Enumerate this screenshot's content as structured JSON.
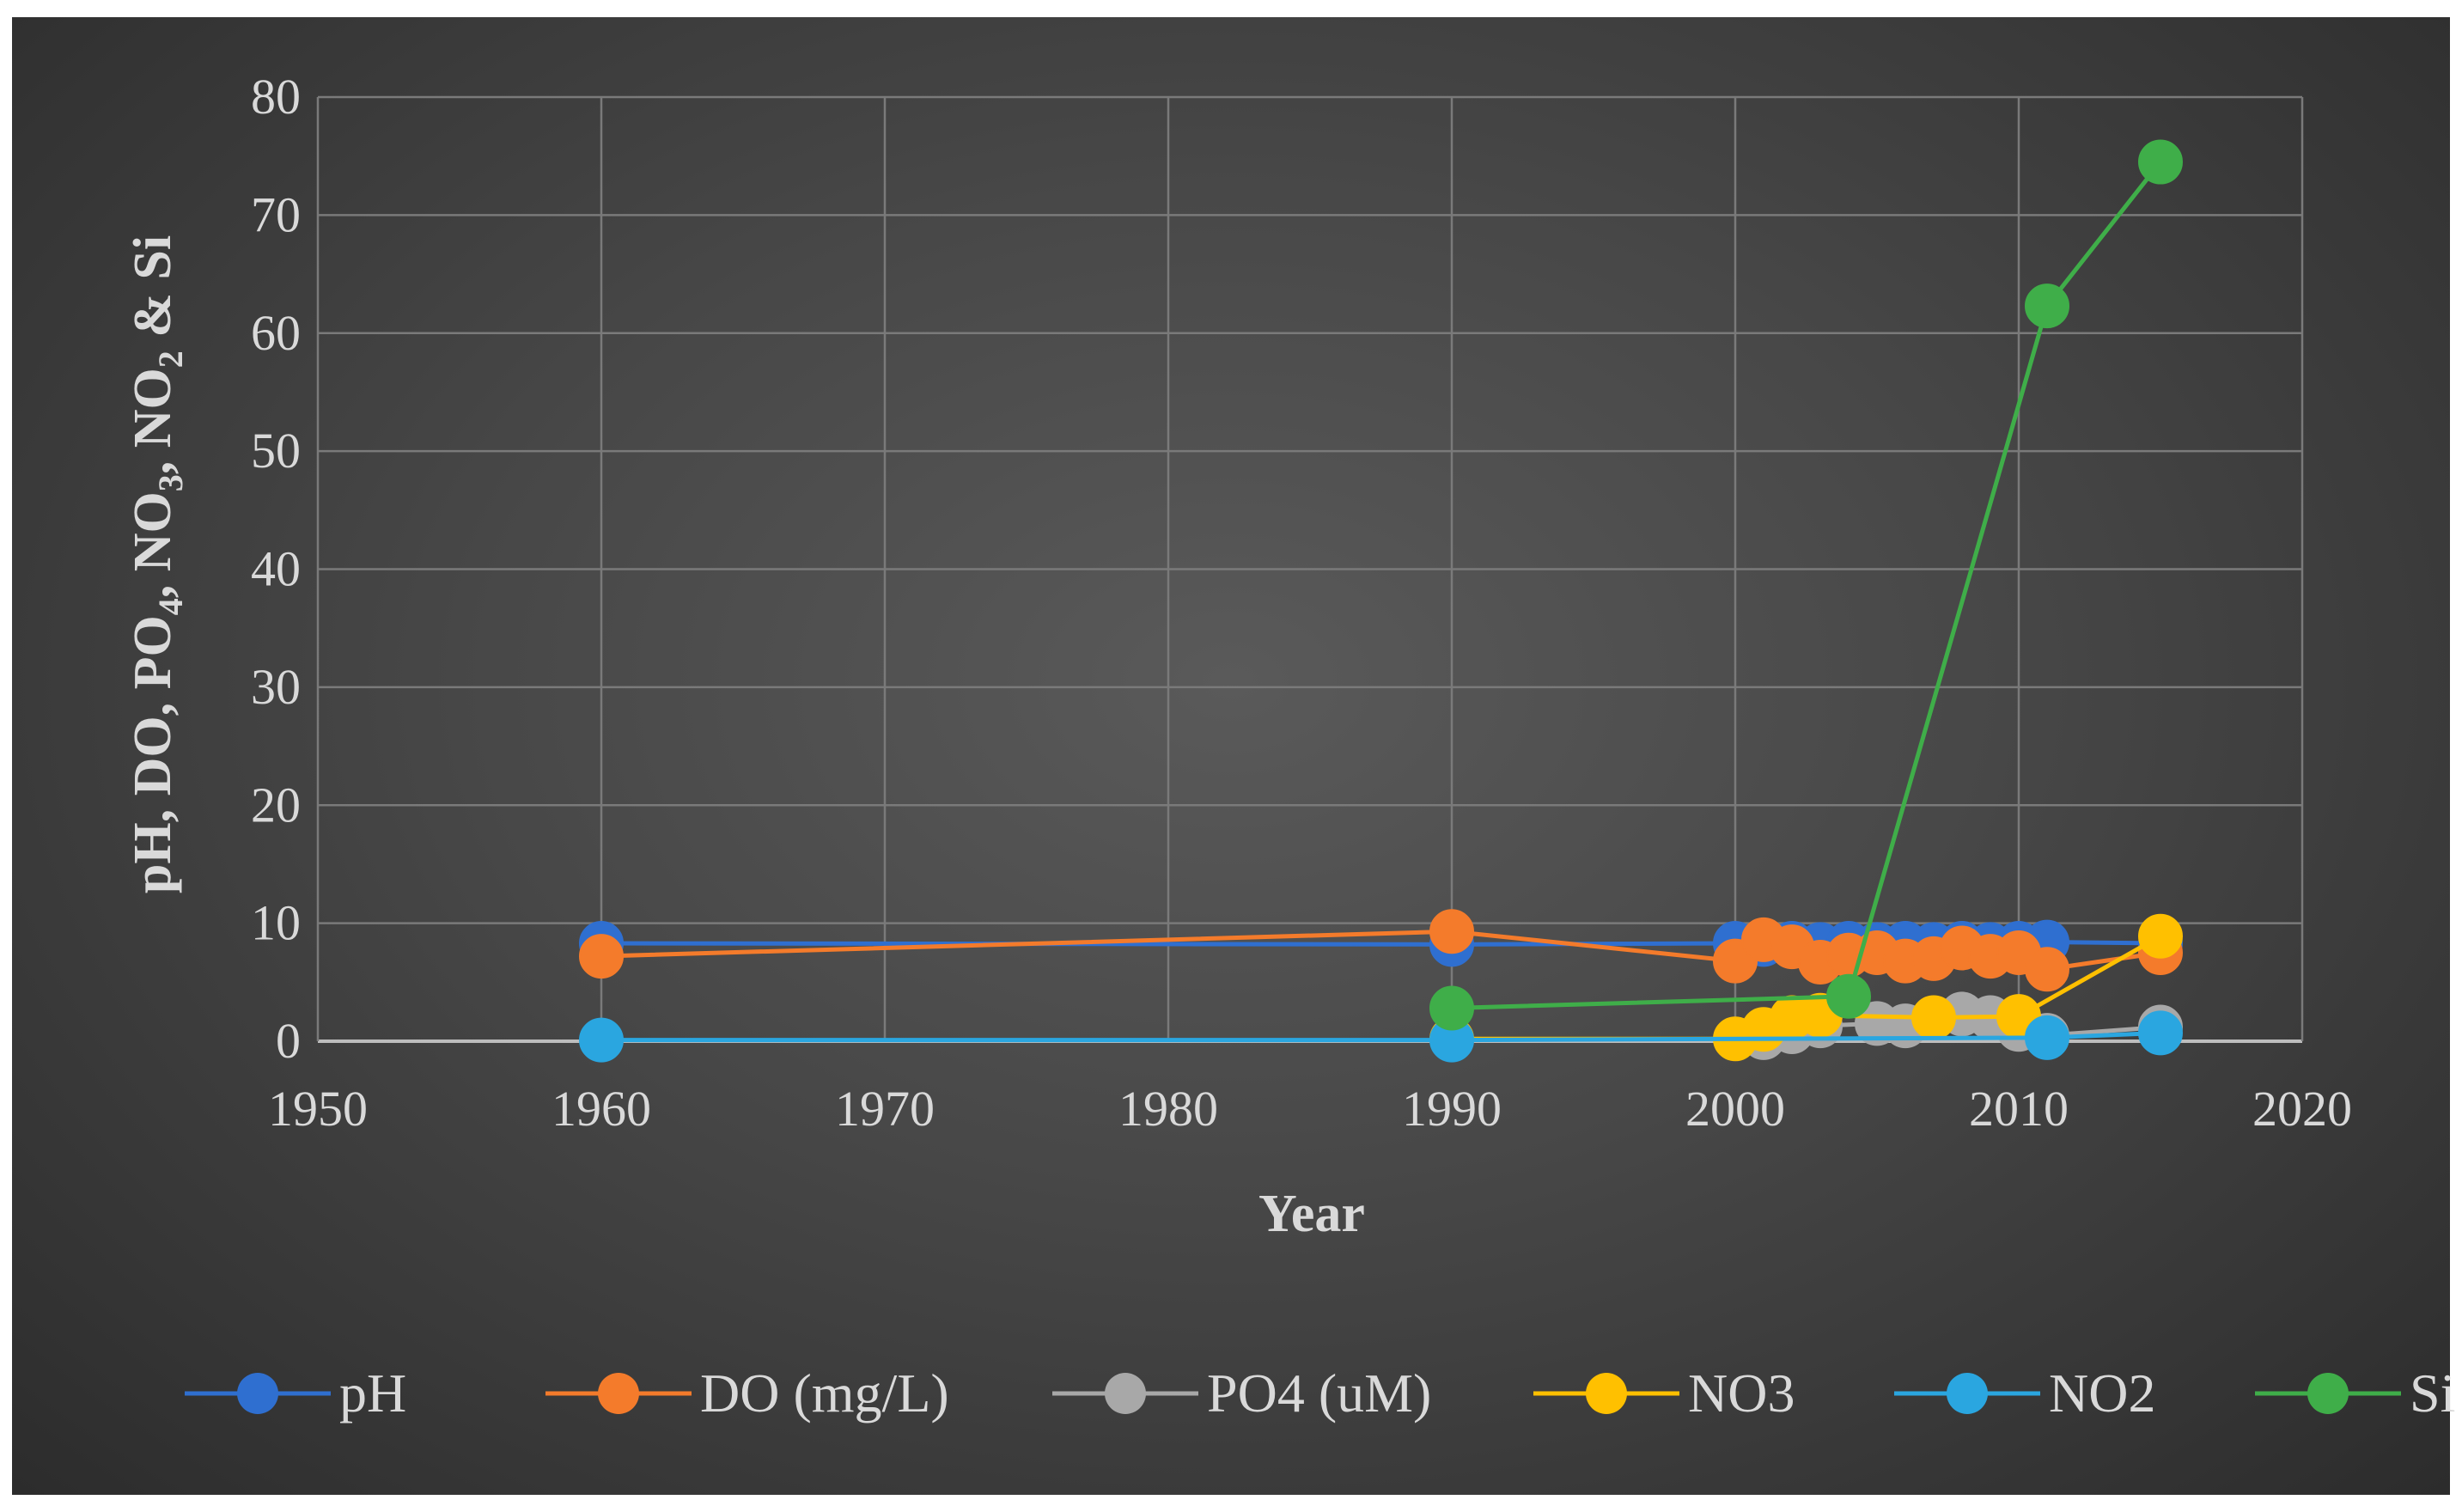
{
  "chart_data": {
    "type": "line",
    "title": "",
    "xlabel": "Year",
    "ylabel_parts": [
      {
        "t": "pH, DO, PO",
        "sub": false
      },
      {
        "t": "4",
        "sub": true
      },
      {
        "t": ", NO",
        "sub": false
      },
      {
        "t": "3",
        "sub": true
      },
      {
        "t": ", NO",
        "sub": false
      },
      {
        "t": "2",
        "sub": true
      },
      {
        "t": " & Si",
        "sub": false
      }
    ],
    "xlim": [
      1950,
      2020
    ],
    "ylim": [
      0,
      80
    ],
    "xticks": [
      1950,
      1960,
      1970,
      1980,
      1990,
      2000,
      2010,
      2020
    ],
    "yticks": [
      0,
      10,
      20,
      30,
      40,
      50,
      60,
      70,
      80
    ],
    "grid": true,
    "legend_position": "bottom",
    "series": [
      {
        "name": "pH",
        "color": "#2f6fd0",
        "points": [
          [
            1960,
            8.3
          ],
          [
            1990,
            8.2
          ],
          [
            2000,
            8.3
          ],
          [
            2001,
            8.2
          ],
          [
            2002,
            8.3
          ],
          [
            2003,
            8.2
          ],
          [
            2004,
            8.3
          ],
          [
            2005,
            8.2
          ],
          [
            2006,
            8.3
          ],
          [
            2007,
            8.2
          ],
          [
            2008,
            8.3
          ],
          [
            2009,
            8.2
          ],
          [
            2010,
            8.3
          ],
          [
            2011,
            8.4
          ],
          [
            2015,
            8.3
          ]
        ]
      },
      {
        "name": "DO (mg/L)",
        "color": "#f47b2b",
        "points": [
          [
            1960,
            7.2
          ],
          [
            1990,
            9.3
          ],
          [
            2000,
            6.8
          ],
          [
            2001,
            8.6
          ],
          [
            2002,
            8.0
          ],
          [
            2003,
            6.7
          ],
          [
            2004,
            7.3
          ],
          [
            2005,
            7.5
          ],
          [
            2006,
            6.8
          ],
          [
            2007,
            7.0
          ],
          [
            2008,
            7.9
          ],
          [
            2009,
            7.2
          ],
          [
            2010,
            7.5
          ],
          [
            2011,
            6.1
          ],
          [
            2015,
            7.5
          ]
        ]
      },
      {
        "name": "PO4 (uM)",
        "color": "#a8a8a8",
        "points": [
          [
            2001,
            0.3
          ],
          [
            2002,
            0.8
          ],
          [
            2003,
            1.3
          ],
          [
            2005,
            1.5
          ],
          [
            2006,
            1.3
          ],
          [
            2008,
            2.3
          ],
          [
            2009,
            2.0
          ],
          [
            2010,
            1.0
          ],
          [
            2011,
            0.5
          ],
          [
            2015,
            1.2
          ]
        ]
      },
      {
        "name": "NO3",
        "color": "#ffc000",
        "points": [
          [
            1990,
            0.2
          ],
          [
            2000,
            0.2
          ],
          [
            2001,
            1.0
          ],
          [
            2002,
            2.0
          ],
          [
            2003,
            2.2
          ],
          [
            2007,
            2.0
          ],
          [
            2010,
            2.1
          ],
          [
            2015,
            8.9
          ]
        ]
      },
      {
        "name": "NO2",
        "color": "#2aa6e0",
        "points": [
          [
            1960,
            0.1
          ],
          [
            1990,
            0.1
          ],
          [
            2011,
            0.3
          ],
          [
            2015,
            0.7
          ]
        ]
      },
      {
        "name": "Si",
        "color": "#3fae49",
        "points": [
          [
            1990,
            2.8
          ],
          [
            2004,
            3.8
          ],
          [
            2011,
            62.3
          ],
          [
            2015,
            74.5
          ]
        ]
      }
    ]
  }
}
